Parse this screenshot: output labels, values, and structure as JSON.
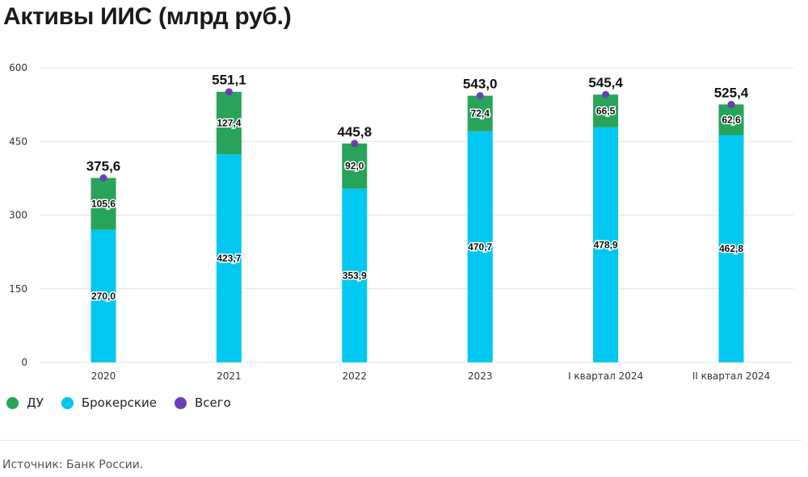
{
  "title": "Активы ИИС (млрд руб.)",
  "source": "Источник: Банк России.",
  "colors": {
    "du": "#27a35a",
    "broker": "#00c8f0",
    "total": "#6a3fb5",
    "grid": "#e4e4e4"
  },
  "legend": [
    {
      "label": "ДУ",
      "color": "#27a35a"
    },
    {
      "label": "Брокерские",
      "color": "#00c8f0"
    },
    {
      "label": "Всего",
      "color": "#6a3fb5"
    }
  ],
  "chart_data": {
    "type": "bar",
    "stacked": true,
    "categories": [
      "2020",
      "2021",
      "2022",
      "2023",
      "I квартал 2024",
      "II квартал 2024"
    ],
    "series": [
      {
        "name": "Брокерские",
        "values": [
          270.0,
          423.7,
          353.9,
          470.7,
          478.9,
          462.8
        ],
        "labels": [
          "270,0",
          "423,7",
          "353,9",
          "470,7",
          "478,9",
          "462,8"
        ]
      },
      {
        "name": "ДУ",
        "values": [
          105.6,
          127.4,
          92.0,
          72.4,
          66.5,
          62.6
        ],
        "labels": [
          "105,6",
          "127,4",
          "92,0",
          "72,4",
          "66,5",
          "62,6"
        ]
      }
    ],
    "total": {
      "name": "Всего",
      "values": [
        375.6,
        551.1,
        445.8,
        543.0,
        545.4,
        525.4
      ],
      "labels": [
        "375,6",
        "551,1",
        "445,8",
        "543,0",
        "545,4",
        "525,4"
      ]
    },
    "yticks": [
      "0",
      "150",
      "300",
      "450",
      "600"
    ],
    "ylim": [
      0,
      600
    ],
    "grid": true,
    "legend_position": "bottom-left"
  }
}
